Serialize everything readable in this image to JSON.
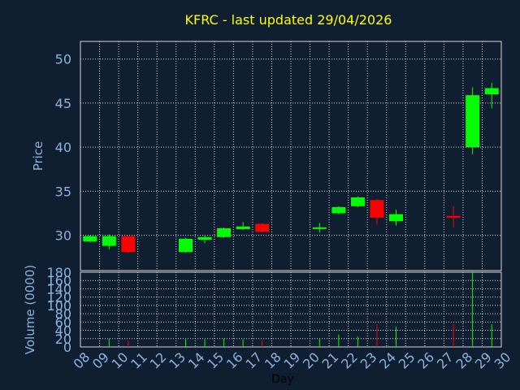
{
  "chart_data": {
    "type": "candlestick",
    "title": "KFRC - last updated 29/04/2026",
    "xlabel": "Day",
    "price_panel": {
      "ylabel": "Price",
      "ylim": [
        26,
        52
      ],
      "yticks": [
        30,
        35,
        40,
        45,
        50
      ]
    },
    "volume_panel": {
      "ylabel": "Volume (0000)",
      "ylim": [
        0,
        180
      ],
      "yticks": [
        0,
        20,
        40,
        60,
        80,
        100,
        120,
        140,
        160,
        180
      ]
    },
    "x_categories": [
      "08",
      "09",
      "10",
      "11",
      "12",
      "13",
      "14",
      "15",
      "16",
      "17",
      "18",
      "19",
      "20",
      "21",
      "22",
      "23",
      "24",
      "25",
      "26",
      "27",
      "28",
      "29",
      "30"
    ],
    "candles": [
      {
        "day": "08",
        "open": 29.3,
        "close": 29.9,
        "high": 30.0,
        "low": 29.2,
        "volume": 0
      },
      {
        "day": "09",
        "open": 28.8,
        "close": 29.9,
        "high": 30.1,
        "low": 28.4,
        "volume": 20
      },
      {
        "day": "10",
        "open": 29.9,
        "close": 28.1,
        "high": 30.0,
        "low": 28.0,
        "volume": 15
      },
      {
        "day": "13",
        "open": 28.1,
        "close": 29.6,
        "high": 29.7,
        "low": 28.0,
        "volume": 18
      },
      {
        "day": "14",
        "open": 29.5,
        "close": 29.8,
        "high": 30.0,
        "low": 29.1,
        "volume": 18
      },
      {
        "day": "15",
        "open": 29.8,
        "close": 30.8,
        "high": 30.9,
        "low": 29.7,
        "volume": 20
      },
      {
        "day": "16",
        "open": 30.7,
        "close": 31.0,
        "high": 31.5,
        "low": 30.6,
        "volume": 18
      },
      {
        "day": "17",
        "open": 31.3,
        "close": 30.4,
        "high": 31.4,
        "low": 30.3,
        "volume": 15
      },
      {
        "day": "20",
        "open": 30.8,
        "close": 30.9,
        "high": 31.4,
        "low": 30.3,
        "volume": 20
      },
      {
        "day": "21",
        "open": 32.5,
        "close": 33.2,
        "high": 33.3,
        "low": 32.4,
        "volume": 30
      },
      {
        "day": "22",
        "open": 33.3,
        "close": 34.3,
        "high": 34.4,
        "low": 33.2,
        "volume": 25
      },
      {
        "day": "23",
        "open": 34.0,
        "close": 32.0,
        "high": 34.1,
        "low": 31.2,
        "volume": 55
      },
      {
        "day": "24",
        "open": 31.6,
        "close": 32.4,
        "high": 32.9,
        "low": 31.1,
        "volume": 48
      },
      {
        "day": "27",
        "open": 32.2,
        "close": 32.0,
        "high": 33.3,
        "low": 30.9,
        "volume": 55
      },
      {
        "day": "28",
        "open": 40.0,
        "close": 45.9,
        "high": 46.8,
        "low": 39.2,
        "volume": 180
      },
      {
        "day": "29",
        "open": 46.0,
        "close": 46.7,
        "high": 47.3,
        "low": 44.4,
        "volume": 55
      }
    ],
    "colors": {
      "background": "#0f1e30",
      "up": "#00ff00",
      "down": "#ff0000",
      "grid": "#d8d8d8",
      "axis_text": "#8cb4de",
      "title": "#ffff00"
    },
    "grid": true
  }
}
